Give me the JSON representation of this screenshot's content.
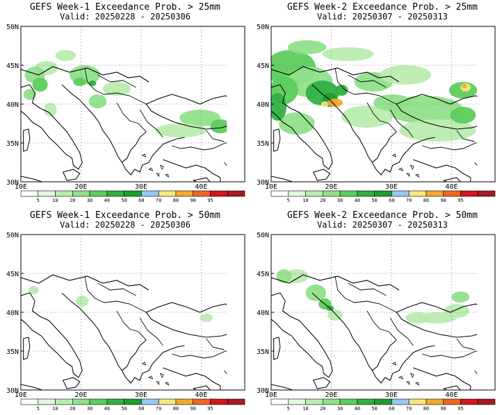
{
  "panels": [
    {
      "title": "GEFS Week-1 Exceedance Prob. > 25mm",
      "valid": "Valid: 20250228 - 20250306",
      "lat_labels": [
        "50N",
        "45N",
        "40N",
        "35N",
        "30N"
      ],
      "lon_labels": [
        "10E",
        "20E",
        "30E",
        "40E"
      ],
      "precip_areas": [
        {
          "region": "Italy / Adriatic coast",
          "probability_class": "10-30"
        },
        {
          "region": "Bosnia / Montenegro",
          "probability_class": "20-50"
        },
        {
          "region": "Alps / Austria",
          "probability_class": "10-20"
        },
        {
          "region": "Western Greece",
          "probability_class": "10-20"
        },
        {
          "region": "Eastern Anatolia / Black Sea coast",
          "probability_class": "10-30"
        }
      ]
    },
    {
      "title": "GEFS Week-2 Exceedance Prob. > 25mm",
      "valid": "Valid: 20250307 - 20250313",
      "lat_labels": [
        "50N",
        "45N",
        "40N",
        "35N",
        "30N"
      ],
      "lon_labels": [
        "10E",
        "20E",
        "30E",
        "40E"
      ],
      "precip_areas": [
        {
          "region": "Italy / Alps / Balkans",
          "probability_class": "10-60"
        },
        {
          "region": "Dinaric Alps (peak)",
          "probability_class": "50-70"
        },
        {
          "region": "Turkey / Black Sea coast",
          "probability_class": "10-30"
        },
        {
          "region": "Caucasus (peak)",
          "probability_class": "50-80"
        },
        {
          "region": "Eastern Mediterranean",
          "probability_class": "5-20"
        }
      ]
    },
    {
      "title": "GEFS Week-1 Exceedance Prob. > 50mm",
      "valid": "Valid: 20250228 - 20250306",
      "lat_labels": [
        "50N",
        "45N",
        "40N",
        "35N",
        "30N"
      ],
      "lon_labels": [
        "10E",
        "20E",
        "30E",
        "40E"
      ],
      "precip_areas": [
        {
          "region": "Adriatic coast",
          "probability_class": "5-10"
        },
        {
          "region": "Eastern Turkey",
          "probability_class": "5-10"
        }
      ]
    },
    {
      "title": "GEFS Week-2 Exceedance Prob. > 50mm",
      "valid": "Valid: 20250307 - 20250313",
      "lat_labels": [
        "50N",
        "45N",
        "40N",
        "35N",
        "30N"
      ],
      "lon_labels": [
        "10E",
        "20E",
        "30E",
        "40E"
      ],
      "precip_areas": [
        {
          "region": "Adriatic / Balkans",
          "probability_class": "5-30"
        },
        {
          "region": "Turkey / Caucasus",
          "probability_class": "5-30"
        },
        {
          "region": "Italy",
          "probability_class": "5-10"
        }
      ]
    }
  ],
  "colorbar": {
    "labels": [
      "5",
      "10",
      "20",
      "30",
      "40",
      "50",
      "60",
      "70",
      "80",
      "90",
      "95"
    ],
    "colors": [
      "#ffffff",
      "#e3f6e0",
      "#b9ecaf",
      "#90e08a",
      "#5ccd5c",
      "#2fb042",
      "#1e9e2e",
      "#96c8f4",
      "#f6e67d",
      "#f3a832",
      "#ee6622",
      "#d2161d",
      "#a51b22"
    ]
  }
}
